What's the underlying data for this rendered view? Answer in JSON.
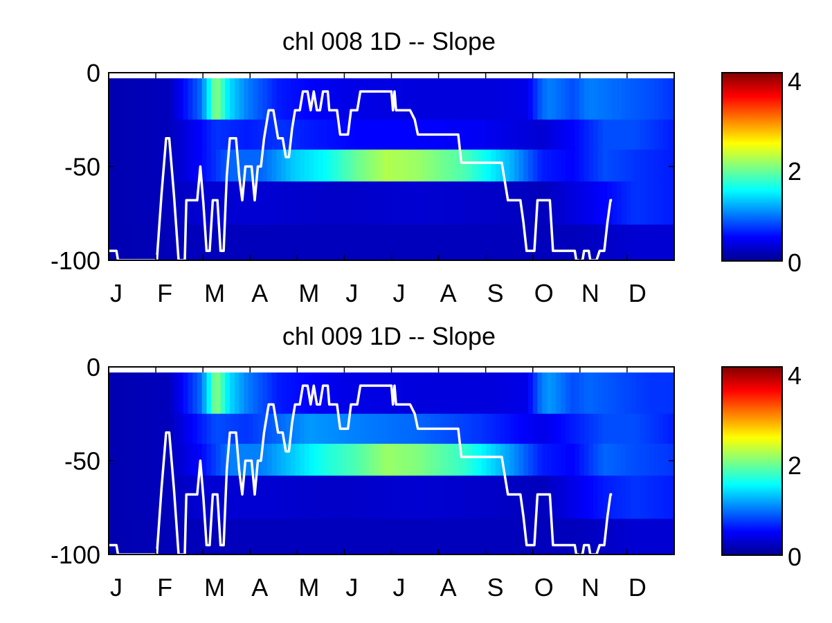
{
  "chart_data": [
    {
      "type": "heatmap",
      "title": "chl  008 1D   -- Slope",
      "xlabel": "",
      "ylabel": "",
      "x_tick_labels": [
        "J",
        "F",
        "M",
        "A",
        "M",
        "J",
        "J",
        "A",
        "S",
        "O",
        "N",
        "D"
      ],
      "y_ticks": [
        0,
        -50,
        -100
      ],
      "y_tick_labels": [
        "0",
        "-50",
        "-100"
      ],
      "x_range": [
        1,
        365
      ],
      "y_range": [
        -100,
        0
      ],
      "colorbar": {
        "range": [
          0,
          4
        ],
        "ticks": [
          0,
          2,
          4
        ],
        "tick_labels": [
          "0",
          "2",
          "4"
        ],
        "colormap": "jet"
      },
      "depth_layers": [
        {
          "top": -3,
          "bottom": -25
        },
        {
          "top": -25,
          "bottom": -41
        },
        {
          "top": -41,
          "bottom": -58
        },
        {
          "top": -58,
          "bottom": -81
        },
        {
          "top": -81,
          "bottom": -100
        }
      ],
      "layer_profiles": [
        [
          [
            1,
            0.15
          ],
          [
            40,
            0.2
          ],
          [
            60,
            0.9
          ],
          [
            65,
            1.4
          ],
          [
            70,
            2.1
          ],
          [
            78,
            1.4
          ],
          [
            90,
            1.0
          ],
          [
            110,
            0.6
          ],
          [
            150,
            0.4
          ],
          [
            200,
            0.35
          ],
          [
            250,
            0.35
          ],
          [
            270,
            0.4
          ],
          [
            280,
            0.9
          ],
          [
            285,
            1.0
          ],
          [
            300,
            0.8
          ],
          [
            310,
            1.0
          ],
          [
            330,
            0.9
          ],
          [
            350,
            0.8
          ],
          [
            365,
            0.7
          ]
        ],
        [
          [
            1,
            0.15
          ],
          [
            40,
            0.2
          ],
          [
            60,
            0.5
          ],
          [
            70,
            0.7
          ],
          [
            90,
            0.6
          ],
          [
            110,
            0.7
          ],
          [
            130,
            0.6
          ],
          [
            160,
            0.5
          ],
          [
            200,
            0.5
          ],
          [
            240,
            0.45
          ],
          [
            280,
            0.3
          ],
          [
            300,
            0.5
          ],
          [
            320,
            0.8
          ],
          [
            340,
            0.8
          ],
          [
            365,
            0.6
          ]
        ],
        [
          [
            1,
            0.15
          ],
          [
            40,
            0.2
          ],
          [
            60,
            0.5
          ],
          [
            80,
            0.9
          ],
          [
            100,
            0.9
          ],
          [
            120,
            1.3
          ],
          [
            140,
            1.5
          ],
          [
            160,
            1.9
          ],
          [
            180,
            2.2
          ],
          [
            200,
            2.1
          ],
          [
            230,
            1.8
          ],
          [
            260,
            1.2
          ],
          [
            280,
            0.6
          ],
          [
            300,
            0.5
          ],
          [
            320,
            0.8
          ],
          [
            340,
            0.7
          ],
          [
            365,
            0.6
          ]
        ],
        [
          [
            1,
            0.15
          ],
          [
            40,
            0.2
          ],
          [
            60,
            0.3
          ],
          [
            80,
            0.3
          ],
          [
            100,
            0.3
          ],
          [
            150,
            0.25
          ],
          [
            200,
            0.3
          ],
          [
            250,
            0.25
          ],
          [
            280,
            0.2
          ],
          [
            320,
            0.5
          ],
          [
            340,
            0.7
          ],
          [
            365,
            0.6
          ]
        ],
        [
          [
            1,
            0.15
          ],
          [
            60,
            0.2
          ],
          [
            100,
            0.2
          ],
          [
            200,
            0.2
          ],
          [
            300,
            0.2
          ],
          [
            340,
            0.3
          ],
          [
            365,
            0.3
          ]
        ]
      ],
      "mixed_layer_depth": [
        [
          1,
          -95
        ],
        [
          6,
          -95
        ],
        [
          7,
          -100
        ],
        [
          32,
          -100
        ],
        [
          35,
          -65
        ],
        [
          38,
          -35
        ],
        [
          40,
          -35
        ],
        [
          43,
          -65
        ],
        [
          46,
          -100
        ],
        [
          50,
          -100
        ],
        [
          51,
          -68
        ],
        [
          58,
          -68
        ],
        [
          60,
          -50
        ],
        [
          62,
          -70
        ],
        [
          64,
          -95
        ],
        [
          66,
          -95
        ],
        [
          68,
          -68
        ],
        [
          71,
          -68
        ],
        [
          73,
          -95
        ],
        [
          75,
          -95
        ],
        [
          77,
          -55
        ],
        [
          79,
          -35
        ],
        [
          83,
          -35
        ],
        [
          85,
          -55
        ],
        [
          87,
          -68
        ],
        [
          89,
          -50
        ],
        [
          93,
          -50
        ],
        [
          95,
          -68
        ],
        [
          97,
          -50
        ],
        [
          99,
          -50
        ],
        [
          101,
          -35
        ],
        [
          104,
          -20
        ],
        [
          107,
          -20
        ],
        [
          110,
          -35
        ],
        [
          113,
          -35
        ],
        [
          115,
          -45
        ],
        [
          117,
          -45
        ],
        [
          119,
          -30
        ],
        [
          121,
          -20
        ],
        [
          124,
          -20
        ],
        [
          126,
          -10
        ],
        [
          129,
          -10
        ],
        [
          131,
          -20
        ],
        [
          133,
          -10
        ],
        [
          135,
          -20
        ],
        [
          137,
          -20
        ],
        [
          139,
          -10
        ],
        [
          142,
          -10
        ],
        [
          143,
          -20
        ],
        [
          148,
          -20
        ],
        [
          150,
          -33
        ],
        [
          155,
          -33
        ],
        [
          157,
          -20
        ],
        [
          161,
          -20
        ],
        [
          163,
          -10
        ],
        [
          183,
          -10
        ],
        [
          184,
          -20
        ],
        [
          185,
          -10
        ],
        [
          186,
          -20
        ],
        [
          195,
          -20
        ],
        [
          198,
          -25
        ],
        [
          200,
          -33
        ],
        [
          226,
          -33
        ],
        [
          228,
          -48
        ],
        [
          254,
          -48
        ],
        [
          258,
          -68
        ],
        [
          266,
          -68
        ],
        [
          268,
          -80
        ],
        [
          270,
          -95
        ],
        [
          275,
          -95
        ],
        [
          277,
          -68
        ],
        [
          285,
          -68
        ],
        [
          287,
          -95
        ],
        [
          301,
          -95
        ],
        [
          302,
          -100
        ],
        [
          306,
          -100
        ],
        [
          307,
          -95
        ],
        [
          310,
          -95
        ],
        [
          311,
          -100
        ],
        [
          315,
          -100
        ],
        [
          317,
          -95
        ],
        [
          320,
          -95
        ],
        [
          322,
          -80
        ],
        [
          324,
          -68
        ],
        [
          325,
          -68
        ]
      ]
    },
    {
      "type": "heatmap",
      "title": "chl  009 1D   -- Slope",
      "xlabel": "",
      "ylabel": "",
      "x_tick_labels": [
        "J",
        "F",
        "M",
        "A",
        "M",
        "J",
        "J",
        "A",
        "S",
        "O",
        "N",
        "D"
      ],
      "y_ticks": [
        0,
        -50,
        -100
      ],
      "y_tick_labels": [
        "0",
        "-50",
        "-100"
      ],
      "x_range": [
        1,
        365
      ],
      "y_range": [
        -100,
        0
      ],
      "colorbar": {
        "range": [
          0,
          4
        ],
        "ticks": [
          0,
          2,
          4
        ],
        "tick_labels": [
          "0",
          "2",
          "4"
        ],
        "colormap": "jet"
      },
      "depth_layers": [
        {
          "top": -3,
          "bottom": -25
        },
        {
          "top": -25,
          "bottom": -41
        },
        {
          "top": -41,
          "bottom": -58
        },
        {
          "top": -58,
          "bottom": -81
        },
        {
          "top": -81,
          "bottom": -100
        }
      ],
      "layer_profiles": [
        [
          [
            1,
            0.15
          ],
          [
            40,
            0.2
          ],
          [
            60,
            0.9
          ],
          [
            65,
            1.4
          ],
          [
            70,
            2.1
          ],
          [
            78,
            1.4
          ],
          [
            90,
            1.0
          ],
          [
            110,
            0.6
          ],
          [
            150,
            0.4
          ],
          [
            200,
            0.35
          ],
          [
            250,
            0.35
          ],
          [
            270,
            0.4
          ],
          [
            280,
            1.0
          ],
          [
            285,
            1.1
          ],
          [
            300,
            0.8
          ],
          [
            310,
            0.9
          ],
          [
            330,
            0.8
          ],
          [
            350,
            0.7
          ],
          [
            365,
            0.7
          ]
        ],
        [
          [
            1,
            0.15
          ],
          [
            40,
            0.2
          ],
          [
            60,
            0.6
          ],
          [
            70,
            0.8
          ],
          [
            90,
            0.7
          ],
          [
            110,
            0.9
          ],
          [
            130,
            1.1
          ],
          [
            160,
            1.0
          ],
          [
            200,
            0.9
          ],
          [
            240,
            0.7
          ],
          [
            280,
            0.4
          ],
          [
            300,
            0.6
          ],
          [
            320,
            0.8
          ],
          [
            340,
            0.8
          ],
          [
            365,
            0.6
          ]
        ],
        [
          [
            1,
            0.15
          ],
          [
            40,
            0.2
          ],
          [
            60,
            0.5
          ],
          [
            80,
            1.0
          ],
          [
            100,
            1.0
          ],
          [
            120,
            1.3
          ],
          [
            140,
            1.6
          ],
          [
            160,
            1.8
          ],
          [
            180,
            2.1
          ],
          [
            200,
            2.0
          ],
          [
            230,
            1.7
          ],
          [
            260,
            1.1
          ],
          [
            280,
            0.6
          ],
          [
            300,
            0.5
          ],
          [
            320,
            0.9
          ],
          [
            340,
            0.8
          ],
          [
            365,
            0.7
          ]
        ],
        [
          [
            1,
            0.15
          ],
          [
            40,
            0.2
          ],
          [
            60,
            0.3
          ],
          [
            80,
            0.3
          ],
          [
            100,
            0.3
          ],
          [
            150,
            0.25
          ],
          [
            200,
            0.3
          ],
          [
            250,
            0.25
          ],
          [
            280,
            0.2
          ],
          [
            320,
            0.6
          ],
          [
            340,
            0.7
          ],
          [
            365,
            0.6
          ]
        ],
        [
          [
            1,
            0.15
          ],
          [
            60,
            0.2
          ],
          [
            100,
            0.2
          ],
          [
            200,
            0.2
          ],
          [
            300,
            0.2
          ],
          [
            340,
            0.3
          ],
          [
            365,
            0.3
          ]
        ]
      ],
      "mixed_layer_depth": [
        [
          1,
          -95
        ],
        [
          6,
          -95
        ],
        [
          7,
          -100
        ],
        [
          32,
          -100
        ],
        [
          35,
          -65
        ],
        [
          38,
          -35
        ],
        [
          40,
          -35
        ],
        [
          43,
          -65
        ],
        [
          46,
          -100
        ],
        [
          50,
          -100
        ],
        [
          51,
          -68
        ],
        [
          58,
          -68
        ],
        [
          60,
          -50
        ],
        [
          62,
          -70
        ],
        [
          64,
          -95
        ],
        [
          66,
          -95
        ],
        [
          68,
          -68
        ],
        [
          71,
          -68
        ],
        [
          73,
          -95
        ],
        [
          75,
          -95
        ],
        [
          77,
          -55
        ],
        [
          79,
          -35
        ],
        [
          83,
          -35
        ],
        [
          85,
          -55
        ],
        [
          87,
          -68
        ],
        [
          89,
          -50
        ],
        [
          93,
          -50
        ],
        [
          95,
          -68
        ],
        [
          97,
          -50
        ],
        [
          99,
          -50
        ],
        [
          101,
          -35
        ],
        [
          104,
          -20
        ],
        [
          107,
          -20
        ],
        [
          110,
          -35
        ],
        [
          113,
          -35
        ],
        [
          115,
          -45
        ],
        [
          117,
          -45
        ],
        [
          119,
          -30
        ],
        [
          121,
          -20
        ],
        [
          124,
          -20
        ],
        [
          126,
          -10
        ],
        [
          129,
          -10
        ],
        [
          131,
          -20
        ],
        [
          133,
          -10
        ],
        [
          135,
          -20
        ],
        [
          137,
          -20
        ],
        [
          139,
          -10
        ],
        [
          142,
          -10
        ],
        [
          143,
          -20
        ],
        [
          148,
          -20
        ],
        [
          150,
          -33
        ],
        [
          155,
          -33
        ],
        [
          157,
          -20
        ],
        [
          161,
          -20
        ],
        [
          163,
          -10
        ],
        [
          183,
          -10
        ],
        [
          184,
          -20
        ],
        [
          185,
          -10
        ],
        [
          186,
          -20
        ],
        [
          195,
          -20
        ],
        [
          198,
          -25
        ],
        [
          200,
          -33
        ],
        [
          226,
          -33
        ],
        [
          228,
          -48
        ],
        [
          254,
          -48
        ],
        [
          258,
          -68
        ],
        [
          266,
          -68
        ],
        [
          268,
          -80
        ],
        [
          270,
          -95
        ],
        [
          275,
          -95
        ],
        [
          277,
          -68
        ],
        [
          285,
          -68
        ],
        [
          287,
          -95
        ],
        [
          301,
          -95
        ],
        [
          302,
          -100
        ],
        [
          306,
          -100
        ],
        [
          307,
          -95
        ],
        [
          310,
          -95
        ],
        [
          311,
          -100
        ],
        [
          315,
          -100
        ],
        [
          317,
          -95
        ],
        [
          320,
          -95
        ],
        [
          322,
          -80
        ],
        [
          324,
          -68
        ],
        [
          325,
          -68
        ]
      ]
    }
  ]
}
